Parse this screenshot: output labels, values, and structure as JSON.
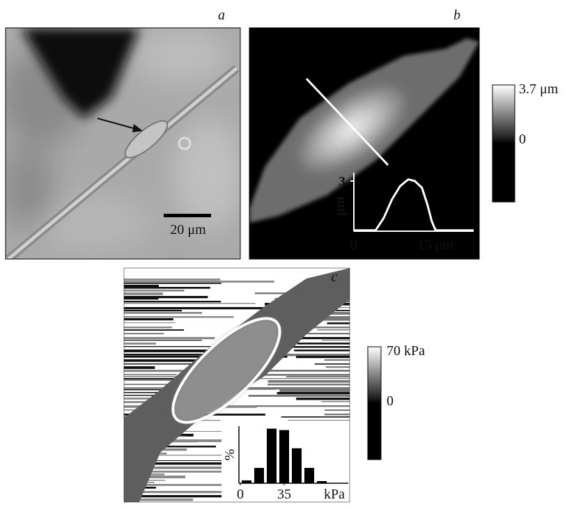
{
  "panels": {
    "a": {
      "label": "a",
      "scale_bar": "20 μm"
    },
    "b": {
      "label": "b",
      "colorbar_labels": [
        "3.7 μm",
        "0"
      ],
      "profile": {
        "type": "line",
        "ylabel": "μm",
        "yticks": [
          3
        ],
        "xticks": [
          0,
          {
            "value": 15,
            "label": "15 μm"
          }
        ],
        "xlim": [
          0,
          22
        ],
        "ylim": [
          0,
          3.5
        ],
        "x": [
          0,
          4,
          5.5,
          7,
          8.5,
          10,
          11.2,
          12.5,
          13.5,
          14.3,
          15,
          22
        ],
        "y": [
          0.05,
          0.05,
          0.8,
          1.9,
          2.7,
          3.1,
          3.0,
          2.6,
          1.6,
          0.6,
          0.05,
          0.05
        ]
      }
    },
    "c": {
      "label": "c",
      "colorbar_labels": [
        "70 kPa",
        "0"
      ],
      "histogram": {
        "type": "histogram",
        "ylabel": "%",
        "bins": [
          0,
          10,
          20,
          30,
          40,
          50,
          60,
          70
        ],
        "values": [
          1.6,
          8.6,
          30.6,
          29.8,
          19.6,
          8.6,
          1.2
        ],
        "ylim": [
          0,
          32
        ],
        "xlim": [
          0,
          70
        ],
        "xticks": [
          0,
          35
        ],
        "xunit": "kPa"
      }
    }
  }
}
